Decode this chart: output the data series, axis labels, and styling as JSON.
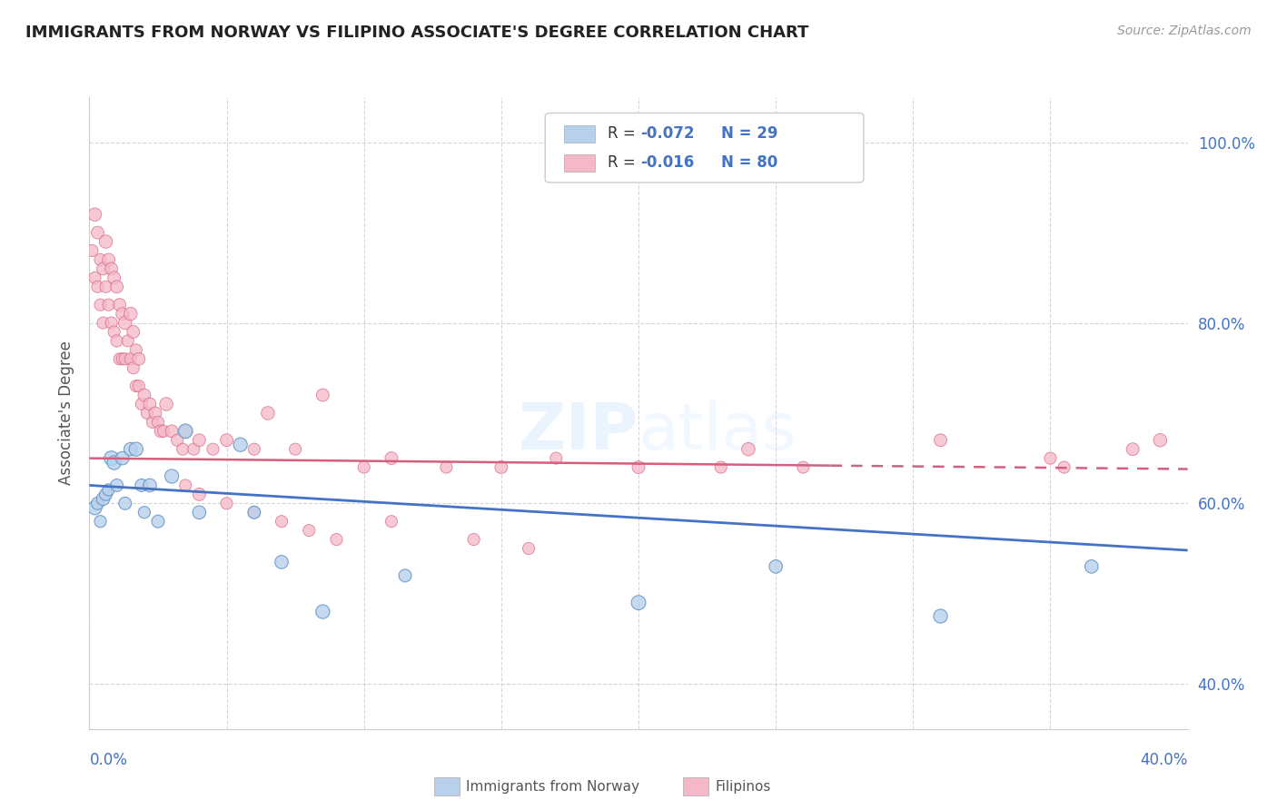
{
  "title": "IMMIGRANTS FROM NORWAY VS FILIPINO ASSOCIATE'S DEGREE CORRELATION CHART",
  "source": "Source: ZipAtlas.com",
  "ylabel": "Associate's Degree",
  "xlim": [
    0.0,
    0.4
  ],
  "ylim": [
    0.35,
    1.05
  ],
  "norway_R": -0.072,
  "norway_N": 29,
  "filipino_R": -0.016,
  "filipino_N": 80,
  "norway_color": "#b8d0eb",
  "norway_edge_color": "#5b8ec4",
  "norwegian_line_color": "#4472c4",
  "filipino_color": "#f5b8c8",
  "filipino_edge_color": "#d45f7f",
  "filipino_line_color": "#d45f7f",
  "background_color": "#ffffff",
  "grid_color": "#cccccc",
  "right_axis_color": "#4472c4",
  "norway_trend_y0": 0.62,
  "norway_trend_y1": 0.548,
  "filipino_trend_solid_x1": 0.27,
  "filipino_trend_y0": 0.65,
  "filipino_trend_y1": 0.638,
  "norway_x": [
    0.002,
    0.003,
    0.004,
    0.005,
    0.006,
    0.007,
    0.008,
    0.009,
    0.01,
    0.012,
    0.013,
    0.015,
    0.017,
    0.019,
    0.02,
    0.022,
    0.025,
    0.03,
    0.035,
    0.04,
    0.055,
    0.06,
    0.07,
    0.085,
    0.115,
    0.2,
    0.25,
    0.31,
    0.365
  ],
  "norway_y": [
    0.595,
    0.6,
    0.58,
    0.605,
    0.61,
    0.615,
    0.65,
    0.645,
    0.62,
    0.65,
    0.6,
    0.66,
    0.66,
    0.62,
    0.59,
    0.62,
    0.58,
    0.63,
    0.68,
    0.59,
    0.665,
    0.59,
    0.535,
    0.48,
    0.52,
    0.49,
    0.53,
    0.475,
    0.53
  ],
  "norway_sizes": [
    120,
    100,
    90,
    110,
    100,
    90,
    130,
    120,
    100,
    110,
    100,
    110,
    120,
    100,
    90,
    110,
    100,
    120,
    130,
    110,
    120,
    100,
    110,
    120,
    100,
    130,
    110,
    120,
    110
  ],
  "filipino_x": [
    0.001,
    0.002,
    0.002,
    0.003,
    0.003,
    0.004,
    0.004,
    0.005,
    0.005,
    0.006,
    0.006,
    0.007,
    0.007,
    0.008,
    0.008,
    0.009,
    0.009,
    0.01,
    0.01,
    0.011,
    0.011,
    0.012,
    0.012,
    0.013,
    0.013,
    0.014,
    0.015,
    0.015,
    0.016,
    0.016,
    0.017,
    0.017,
    0.018,
    0.018,
    0.019,
    0.02,
    0.021,
    0.022,
    0.023,
    0.024,
    0.025,
    0.026,
    0.027,
    0.028,
    0.03,
    0.032,
    0.034,
    0.035,
    0.038,
    0.04,
    0.045,
    0.05,
    0.06,
    0.065,
    0.075,
    0.085,
    0.1,
    0.11,
    0.13,
    0.15,
    0.17,
    0.2,
    0.23,
    0.24,
    0.26,
    0.31,
    0.35,
    0.355,
    0.38,
    0.39,
    0.035,
    0.04,
    0.05,
    0.06,
    0.07,
    0.08,
    0.09,
    0.11,
    0.14,
    0.16
  ],
  "filipino_y": [
    0.88,
    0.92,
    0.85,
    0.9,
    0.84,
    0.87,
    0.82,
    0.86,
    0.8,
    0.89,
    0.84,
    0.87,
    0.82,
    0.86,
    0.8,
    0.85,
    0.79,
    0.84,
    0.78,
    0.82,
    0.76,
    0.81,
    0.76,
    0.8,
    0.76,
    0.78,
    0.81,
    0.76,
    0.79,
    0.75,
    0.77,
    0.73,
    0.76,
    0.73,
    0.71,
    0.72,
    0.7,
    0.71,
    0.69,
    0.7,
    0.69,
    0.68,
    0.68,
    0.71,
    0.68,
    0.67,
    0.66,
    0.68,
    0.66,
    0.67,
    0.66,
    0.67,
    0.66,
    0.7,
    0.66,
    0.72,
    0.64,
    0.65,
    0.64,
    0.64,
    0.65,
    0.64,
    0.64,
    0.66,
    0.64,
    0.67,
    0.65,
    0.64,
    0.66,
    0.67,
    0.62,
    0.61,
    0.6,
    0.59,
    0.58,
    0.57,
    0.56,
    0.58,
    0.56,
    0.55
  ],
  "filipino_sizes": [
    90,
    110,
    90,
    100,
    90,
    90,
    90,
    100,
    90,
    110,
    90,
    100,
    90,
    100,
    90,
    100,
    90,
    100,
    90,
    100,
    90,
    100,
    90,
    110,
    90,
    90,
    110,
    90,
    100,
    90,
    90,
    90,
    100,
    90,
    90,
    100,
    90,
    100,
    90,
    100,
    90,
    100,
    90,
    110,
    100,
    90,
    90,
    100,
    90,
    100,
    90,
    100,
    90,
    110,
    90,
    100,
    90,
    100,
    90,
    100,
    90,
    100,
    90,
    110,
    90,
    100,
    90,
    90,
    100,
    110,
    90,
    100,
    90,
    90,
    90,
    90,
    90,
    90,
    90,
    90
  ]
}
